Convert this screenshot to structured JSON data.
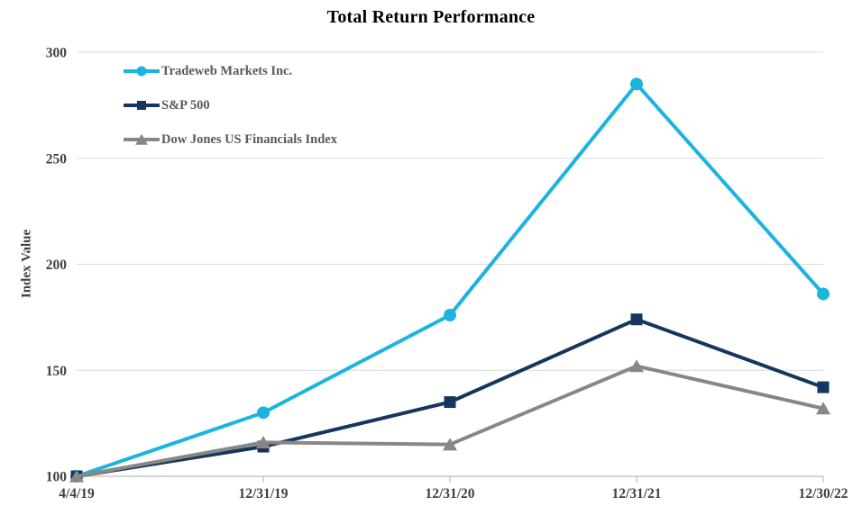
{
  "chart_data": {
    "type": "line",
    "title": "Total Return Performance",
    "ylabel": "Index Value",
    "xlabel": "",
    "x": [
      "4/4/19",
      "12/31/19",
      "12/31/20",
      "12/31/21",
      "12/30/22"
    ],
    "series": [
      {
        "name": "Tradeweb Markets Inc.",
        "color": "#1BB4DF",
        "marker": "circle",
        "values": [
          100,
          130,
          176,
          285,
          186
        ]
      },
      {
        "name": "S&P 500",
        "color": "#16365D",
        "marker": "square",
        "values": [
          100,
          114,
          135,
          174,
          142
        ]
      },
      {
        "name": "Dow Jones US Financials Index",
        "color": "#878787",
        "marker": "triangle",
        "values": [
          100,
          116,
          115,
          152,
          132
        ]
      }
    ],
    "ylim": [
      100,
      300
    ],
    "ytick_step": 50,
    "yticks": [
      100,
      150,
      200,
      250,
      300
    ],
    "grid": true,
    "legend_position": "inside-top-left"
  },
  "colors": {
    "background": "#FFFFFF",
    "gridline": "#D9D9D9",
    "axis_line": "#BFBFBF",
    "tick_label": "#3F3F3F",
    "legend_label": "#595959",
    "title": "#000000"
  }
}
